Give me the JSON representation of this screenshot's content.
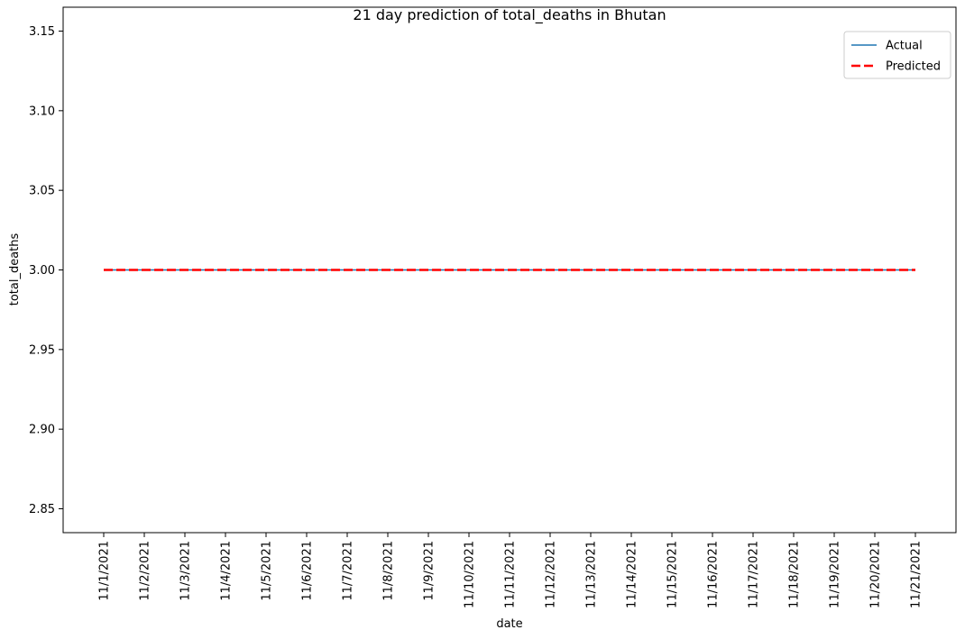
{
  "chart_data": {
    "type": "line",
    "title": "21 day prediction of total_deaths in Bhutan",
    "xlabel": "date",
    "ylabel": "total_deaths",
    "x": [
      "11/1/2021",
      "11/2/2021",
      "11/3/2021",
      "11/4/2021",
      "11/5/2021",
      "11/6/2021",
      "11/7/2021",
      "11/8/2021",
      "11/9/2021",
      "11/10/2021",
      "11/11/2021",
      "11/12/2021",
      "11/13/2021",
      "11/14/2021",
      "11/15/2021",
      "11/16/2021",
      "11/17/2021",
      "11/18/2021",
      "11/19/2021",
      "11/20/2021",
      "11/21/2021"
    ],
    "yticks": [
      2.85,
      2.9,
      2.95,
      3.0,
      3.05,
      3.1,
      3.15
    ],
    "ylim": [
      2.835,
      3.165
    ],
    "grid": false,
    "legend_position": "top-right",
    "series": [
      {
        "name": "Actual",
        "color": "#1f77b4",
        "style": "solid",
        "values": [
          3,
          3,
          3,
          3,
          3,
          3,
          3,
          3,
          3,
          3,
          3,
          3,
          3,
          3,
          3,
          3,
          3,
          3,
          3,
          3,
          3
        ]
      },
      {
        "name": "Predicted",
        "color": "#ff0000",
        "style": "dashed",
        "values": [
          3,
          3,
          3,
          3,
          3,
          3,
          3,
          3,
          3,
          3,
          3,
          3,
          3,
          3,
          3,
          3,
          3,
          3,
          3,
          3,
          3
        ]
      }
    ]
  }
}
